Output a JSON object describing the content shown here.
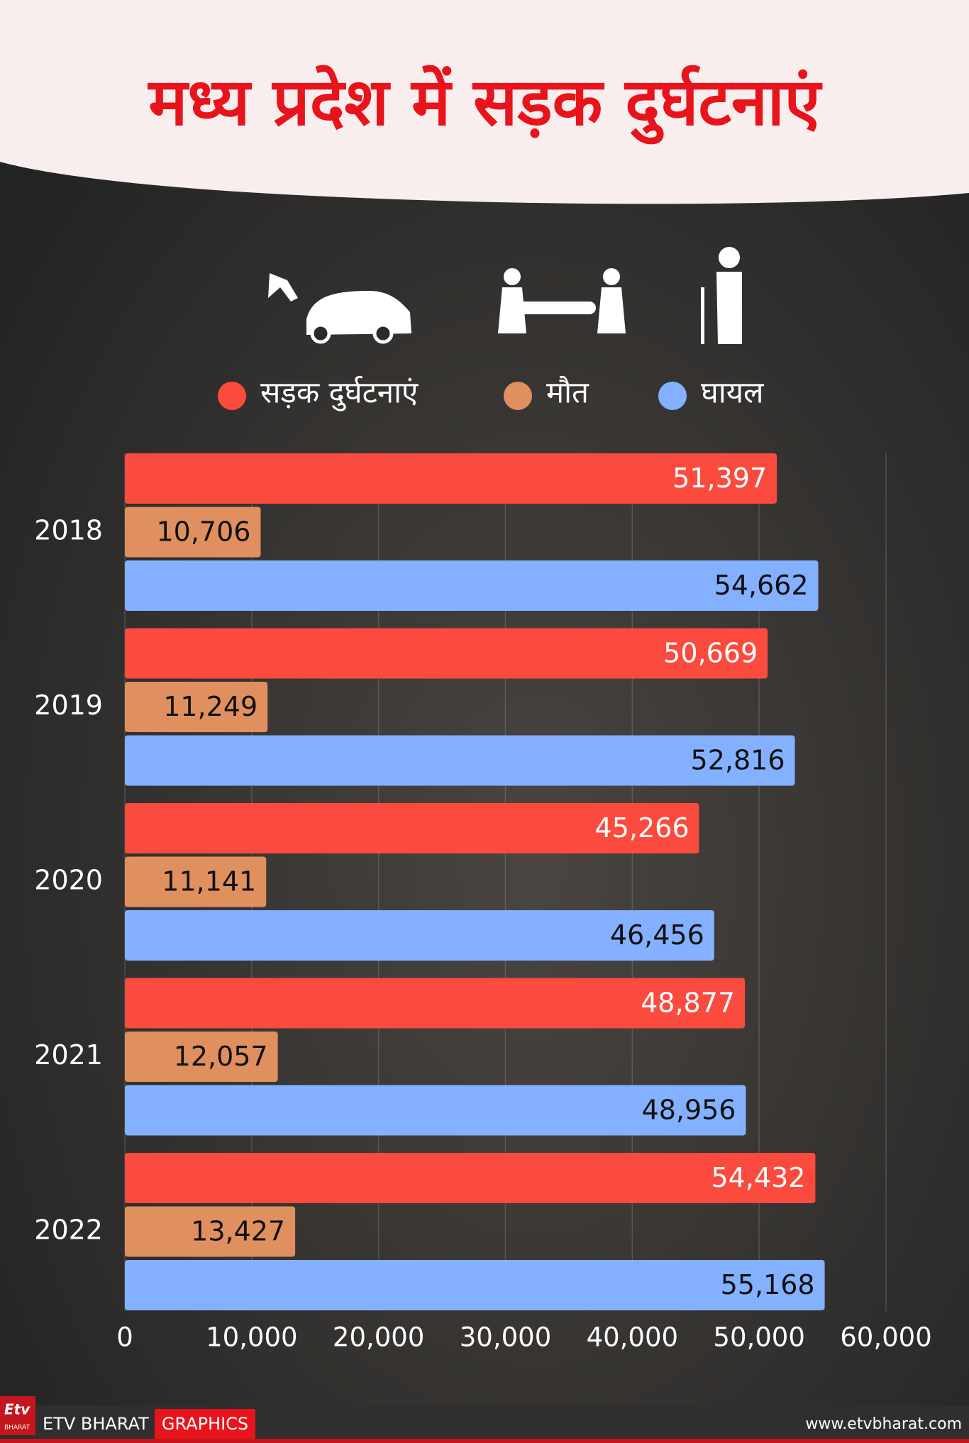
{
  "chart_data": {
    "type": "bar",
    "orientation": "horizontal",
    "title": "मध्य प्रदेश में सड़क दुर्घटनाएं",
    "categories": [
      "2018",
      "2019",
      "2020",
      "2021",
      "2022"
    ],
    "series": [
      {
        "name": "सड़क दुर्घटनाएं",
        "color": "#fb4a3e",
        "values": [
          51397,
          50669,
          45266,
          48877,
          54432
        ],
        "value_labels": [
          "51,397",
          "50,669",
          "45,266",
          "48,877",
          "54,432"
        ]
      },
      {
        "name": "मौत",
        "color": "#e0905f",
        "values": [
          10706,
          11249,
          11141,
          12057,
          13427
        ],
        "value_labels": [
          "10,706",
          "11,249",
          "11,141",
          "12,057",
          "13,427"
        ]
      },
      {
        "name": "घायल",
        "color": "#84b1ff",
        "values": [
          54662,
          52816,
          46456,
          48956,
          55168
        ],
        "value_labels": [
          "54,662",
          "52,816",
          "46,456",
          "48,956",
          "55,168"
        ]
      }
    ],
    "xlim": [
      0,
      60000
    ],
    "xticks": [
      0,
      {
        "value": 10000,
        "label": "10,000"
      },
      {
        "value": 20000,
        "label": "20,000"
      },
      {
        "value": 30000,
        "label": "30,000"
      },
      {
        "value": 40000,
        "label": "40,000"
      },
      {
        "value": 50000,
        "label": "50,000"
      },
      {
        "value": 60000,
        "label": "60,000"
      }
    ],
    "grid": true
  },
  "footer": {
    "logo_top": "Etv",
    "logo_bottom": "BHARAT",
    "brand": "ETV BHARAT",
    "section": "GRAPHICS",
    "website": "www.etvbharat.com"
  }
}
